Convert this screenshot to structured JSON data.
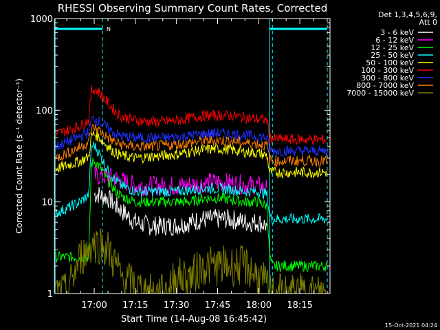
{
  "chart_data": {
    "type": "line",
    "title": "RHESSI Observing Summary Count Rates, Corrected",
    "xlabel": "Start Time (14-Aug-08 16:45:42)",
    "ylabel": "Corrected Count Rate (s⁻¹ detector⁻¹)",
    "yscale": "log",
    "ylim": [
      1,
      1000
    ],
    "xlim": [
      "16:45:42",
      "18:26"
    ],
    "x_ticks": [
      "17:00",
      "17:15",
      "17:30",
      "17:45",
      "18:00",
      "18:15"
    ],
    "y_ticks": [
      "1",
      "10",
      "100",
      "1000"
    ],
    "legend_header": [
      "Det 1,3,4,5,6,9,",
      "Att 0"
    ],
    "legend_position": "right",
    "timestamp": "15-Oct-2021 04:24",
    "markers": {
      "night_label": "N",
      "dashed_lines": [
        "16:45:30",
        "17:03",
        "18:05",
        "18:25"
      ],
      "solid_lines": [
        "16:45:30",
        "18:04"
      ],
      "night_segments": [
        [
          "16:45:30",
          "17:03"
        ],
        [
          "18:04",
          "18:25"
        ]
      ]
    },
    "x": [
      "16:46",
      "16:50",
      "16:55",
      "16:58",
      "16:59",
      "17:00",
      "17:02",
      "17:05",
      "17:08",
      "17:10",
      "17:15",
      "17:20",
      "17:25",
      "17:30",
      "17:35",
      "17:40",
      "17:45",
      "17:50",
      "17:55",
      "18:00",
      "18:03",
      "18:04",
      "18:05",
      "18:10",
      "18:15",
      "18:20",
      "18:25"
    ],
    "series": [
      {
        "name": "3 - 6 keV",
        "color": "#ffffff",
        "values": [
          null,
          null,
          null,
          null,
          null,
          12,
          12,
          11,
          9,
          8,
          6,
          5.5,
          5.5,
          5.5,
          6,
          6.5,
          6.5,
          6.5,
          6,
          6,
          5.5,
          null,
          null,
          null,
          null,
          null,
          null
        ]
      },
      {
        "name": "6 - 12 keV",
        "color": "#ff00ff",
        "values": [
          null,
          null,
          null,
          null,
          null,
          19,
          19,
          19,
          18,
          17,
          15,
          15,
          15,
          15,
          15.5,
          16,
          16.5,
          16,
          15.5,
          15,
          14,
          null,
          null,
          null,
          null,
          null,
          null
        ]
      },
      {
        "name": "12 - 25 keV",
        "color": "#00ff00",
        "values": [
          2.5,
          2.5,
          2.5,
          2.5,
          26,
          28,
          24,
          17,
          13,
          11.5,
          10,
          10,
          10,
          10,
          10,
          11,
          11,
          10.5,
          10,
          10,
          9,
          2.5,
          2,
          2,
          2,
          2,
          2
        ]
      },
      {
        "name": "25 - 50 keV",
        "color": "#00ffff",
        "values": [
          7.5,
          8.5,
          10,
          12,
          40,
          42,
          33,
          22,
          17,
          15,
          13,
          13,
          13,
          13,
          13.5,
          14,
          14,
          13.5,
          13,
          13,
          12,
          7,
          6.5,
          6.5,
          6.5,
          6.5,
          6.5
        ]
      },
      {
        "name": "50 - 100 keV",
        "color": "#ffff00",
        "values": [
          23,
          25,
          28,
          31,
          52,
          55,
          50,
          40,
          34,
          32,
          30,
          31,
          32,
          33,
          35,
          37,
          38,
          37,
          35,
          34,
          32,
          21,
          21,
          21,
          21,
          21,
          21
        ]
      },
      {
        "name": "100 - 300 keV",
        "color": "#ff0000",
        "values": [
          55,
          60,
          68,
          78,
          165,
          170,
          155,
          120,
          95,
          85,
          78,
          75,
          75,
          77,
          82,
          87,
          88,
          87,
          83,
          80,
          78,
          50,
          49,
          48,
          48,
          48,
          48
        ]
      },
      {
        "name": "300 - 800 keV",
        "color": "#2030ff",
        "values": [
          40,
          45,
          52,
          58,
          78,
          82,
          75,
          63,
          55,
          52,
          50,
          50,
          50,
          51,
          53,
          55,
          56,
          55,
          53,
          52,
          50,
          37,
          36,
          36,
          36,
          36,
          36
        ]
      },
      {
        "name": "800 - 7000 keV",
        "color": "#ff8000",
        "values": [
          30,
          34,
          40,
          45,
          62,
          65,
          60,
          50,
          44,
          42,
          40,
          40,
          41,
          42,
          44,
          46,
          47,
          46,
          44,
          43,
          41,
          29,
          28,
          28,
          28,
          28,
          28
        ]
      },
      {
        "name": "7000 - 15000 keV",
        "color": "#808000",
        "values": [
          1,
          1,
          2.5,
          3,
          3.5,
          3.5,
          3.5,
          3,
          2,
          1.5,
          1.2,
          1,
          1,
          1.5,
          1.5,
          2,
          2,
          2,
          2,
          1.5,
          1.2,
          1,
          1,
          1,
          1,
          1,
          1
        ]
      }
    ]
  }
}
